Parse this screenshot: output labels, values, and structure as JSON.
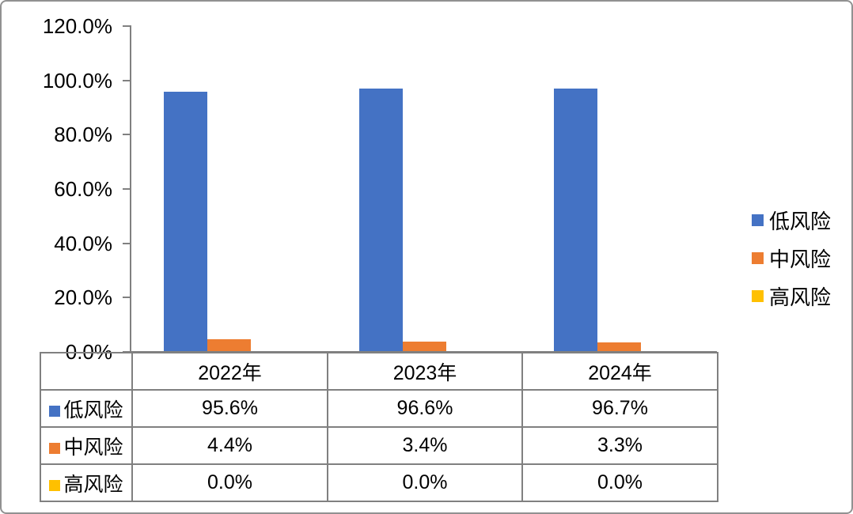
{
  "chart_data": {
    "type": "bar",
    "title": "",
    "categories": [
      "2022年",
      "2023年",
      "2024年"
    ],
    "series": [
      {
        "name": "低风险",
        "color": "#4472C4",
        "values": [
          95.6,
          96.6,
          96.7
        ]
      },
      {
        "name": "中风险",
        "color": "#ED7D31",
        "values": [
          4.4,
          3.4,
          3.3
        ]
      },
      {
        "name": "高风险",
        "color": "#FFC000",
        "values": [
          0.0,
          0.0,
          0.0
        ]
      }
    ],
    "ylim": [
      0,
      120
    ],
    "ytick_values": [
      120,
      100,
      80,
      60,
      40,
      20,
      0
    ],
    "ytick_labels": [
      "120.0%",
      "100.0%",
      "80.0%",
      "60.0%",
      "40.0%",
      "20.0%",
      "0.0%"
    ],
    "grid": false,
    "legend_position": "right",
    "axis_color": "#808080",
    "border_color": "#919191",
    "data_table": {
      "header": [
        "2022年",
        "2023年",
        "2024年"
      ],
      "rows": [
        {
          "label": "低风险",
          "values": [
            "95.6%",
            "96.6%",
            "96.7%"
          ]
        },
        {
          "label": "中风险",
          "values": [
            "4.4%",
            "3.4%",
            "3.3%"
          ]
        },
        {
          "label": "高风险",
          "values": [
            "0.0%",
            "0.0%",
            "0.0%"
          ]
        }
      ]
    }
  }
}
